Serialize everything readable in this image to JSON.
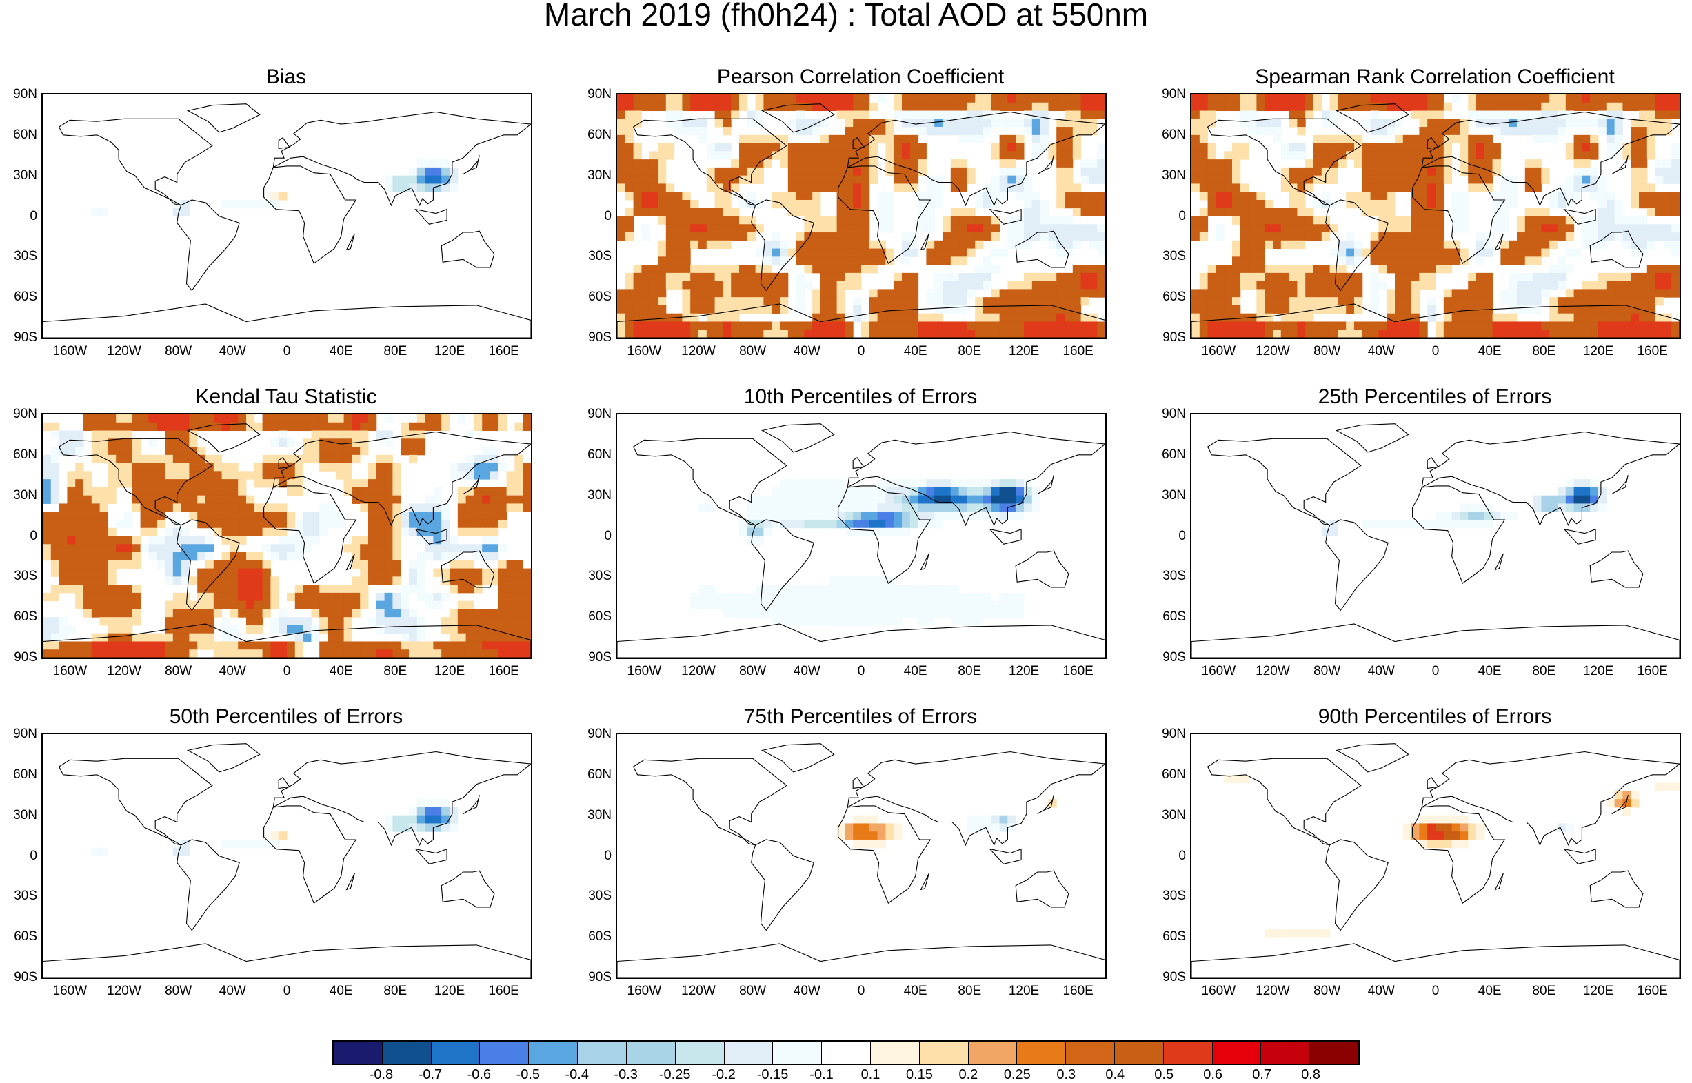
{
  "title": "March 2019 (fh0h24) : Total AOD at 550nm",
  "lat_labels": [
    "90N",
    "60N",
    "30N",
    "0",
    "30S",
    "60S",
    "90S"
  ],
  "lon_labels": [
    "160W",
    "120W",
    "80W",
    "40W",
    "0",
    "40E",
    "80E",
    "120E",
    "160E"
  ],
  "panels": [
    {
      "title": "Bias",
      "style": "bias"
    },
    {
      "title": "Pearson Correlation Coefficient",
      "style": "corr"
    },
    {
      "title": "Spearman Rank Correlation Coefficient",
      "style": "corr"
    },
    {
      "title": "Kendal Tau Statistic",
      "style": "tau"
    },
    {
      "title": "10th Percentiles of Errors",
      "style": "p10"
    },
    {
      "title": "25th Percentiles of Errors",
      "style": "p25"
    },
    {
      "title": "50th Percentiles of Errors",
      "style": "p50"
    },
    {
      "title": "75th Percentiles of Errors",
      "style": "p75"
    },
    {
      "title": "90th Percentiles of Errors",
      "style": "p90"
    }
  ],
  "colorbar": {
    "labels": [
      "-0.8",
      "-0.7",
      "-0.6",
      "-0.5",
      "-0.4",
      "-0.3",
      "-0.25",
      "-0.2",
      "-0.15",
      "-0.1",
      "0.1",
      "0.15",
      "0.2",
      "0.25",
      "0.3",
      "0.4",
      "0.5",
      "0.6",
      "0.7",
      "0.8"
    ],
    "colors": [
      "#1a1a6e",
      "#10508f",
      "#1e74c9",
      "#4a7fe6",
      "#5aa6e0",
      "#a8d2e8",
      "#a9d3e6",
      "#c7e7ec",
      "#e1eef8",
      "#f2fbfd",
      "#ffffff",
      "#fff4e0",
      "#fde0aa",
      "#f2a663",
      "#e87b17",
      "#d26618",
      "#c85f14",
      "#e03a1a",
      "#e5000a",
      "#c6000a",
      "#8b0000"
    ]
  }
}
